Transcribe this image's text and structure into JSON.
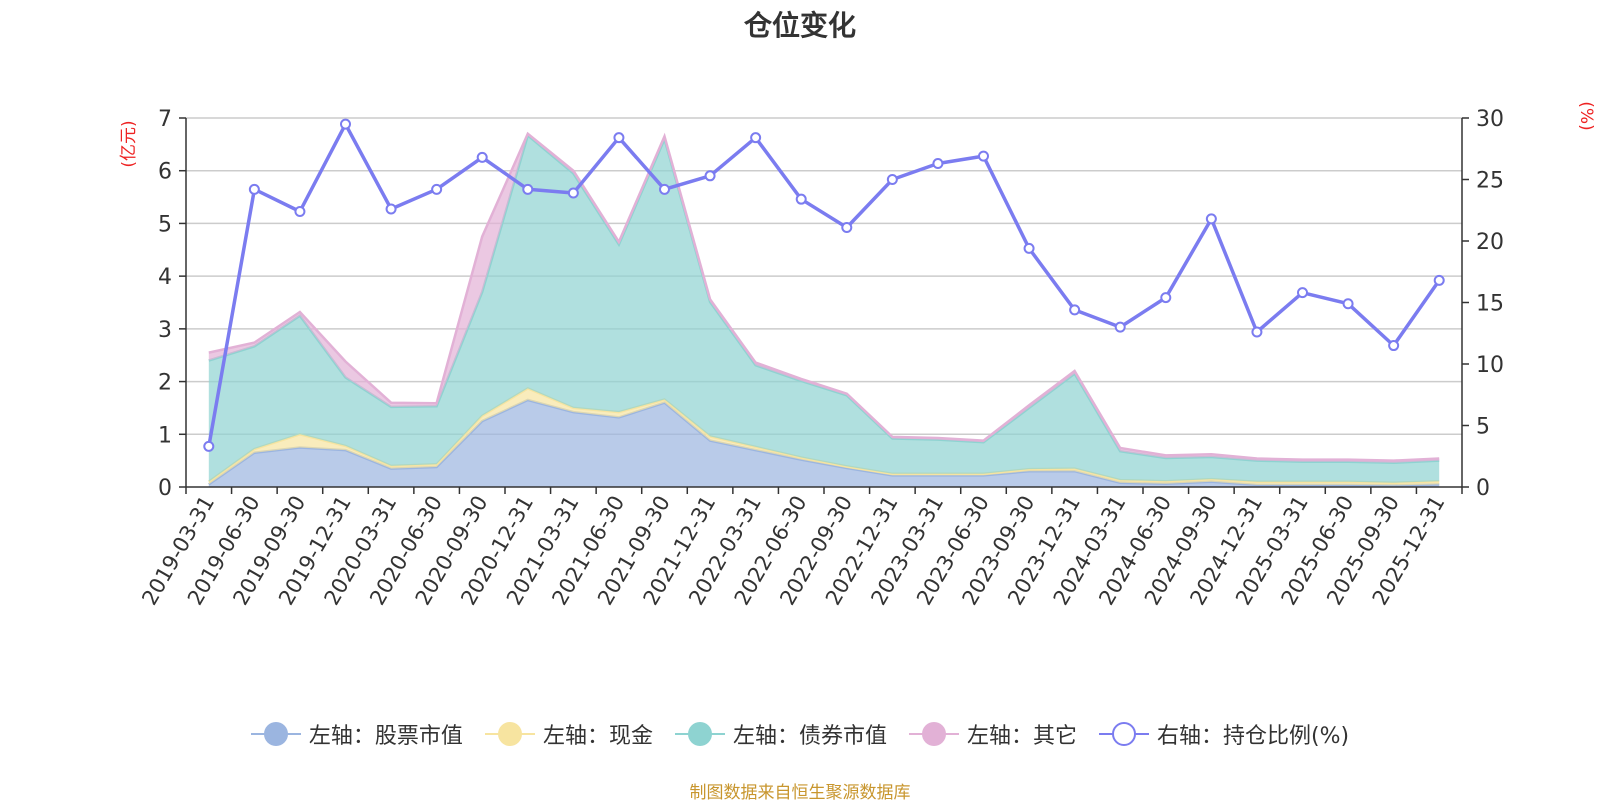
{
  "chart_data": {
    "type": "area",
    "title": "仓位变化",
    "left_axis": {
      "unit_label": "(亿元)",
      "ticks": [
        "0",
        "1",
        "2",
        "3",
        "4",
        "5",
        "6",
        "7"
      ],
      "range": [
        0,
        7
      ]
    },
    "right_axis": {
      "unit_label": "(%)",
      "ticks": [
        "0",
        "5",
        "10",
        "15",
        "20",
        "25",
        "30"
      ],
      "range": [
        0,
        30
      ]
    },
    "categories": [
      "2019-03-31",
      "2019-06-30",
      "2019-09-30",
      "2019-12-31",
      "2020-03-31",
      "2020-06-30",
      "2020-09-30",
      "2020-12-31",
      "2021-03-31",
      "2021-06-30",
      "2021-09-30",
      "2021-12-31",
      "2022-03-31",
      "2022-06-30",
      "2022-09-30",
      "2022-12-31",
      "2023-03-31",
      "2023-06-30",
      "2023-09-30",
      "2023-12-31",
      "2024-03-31",
      "2024-06-30",
      "2024-09-30",
      "2024-12-31",
      "2025-03-31",
      "2025-06-30",
      "2025-09-30",
      "2025-12-31"
    ],
    "stacked_series": [
      {
        "name": "左轴：股票市值",
        "color": "#9bb5e0",
        "values": [
          0.05,
          0.65,
          0.75,
          0.7,
          0.35,
          0.38,
          1.25,
          1.65,
          1.42,
          1.32,
          1.6,
          0.88,
          0.7,
          0.52,
          0.36,
          0.22,
          0.22,
          0.22,
          0.3,
          0.3,
          0.08,
          0.06,
          0.1,
          0.04,
          0.04,
          0.04,
          0.03,
          0.05
        ]
      },
      {
        "name": "左轴：现金",
        "color": "#f7e4a0",
        "values": [
          0.05,
          0.07,
          0.25,
          0.08,
          0.05,
          0.05,
          0.1,
          0.22,
          0.08,
          0.1,
          0.06,
          0.08,
          0.06,
          0.04,
          0.03,
          0.03,
          0.03,
          0.03,
          0.04,
          0.05,
          0.05,
          0.05,
          0.05,
          0.06,
          0.06,
          0.06,
          0.05,
          0.06
        ]
      },
      {
        "name": "左轴：债券市值",
        "color": "#8ed3d1",
        "values": [
          2.3,
          1.95,
          2.25,
          1.3,
          1.12,
          1.1,
          2.35,
          4.8,
          4.45,
          3.18,
          4.94,
          2.55,
          1.55,
          1.45,
          1.35,
          0.67,
          0.65,
          0.6,
          1.16,
          1.8,
          0.55,
          0.44,
          0.42,
          0.4,
          0.38,
          0.38,
          0.38,
          0.39
        ]
      },
      {
        "name": "左轴：其它",
        "color": "#e2b1d6",
        "values": [
          0.15,
          0.07,
          0.07,
          0.3,
          0.08,
          0.06,
          1.05,
          0.03,
          0.05,
          0.05,
          0.05,
          0.05,
          0.05,
          0.04,
          0.03,
          0.03,
          0.03,
          0.03,
          0.05,
          0.05,
          0.06,
          0.05,
          0.05,
          0.04,
          0.04,
          0.04,
          0.04,
          0.04
        ]
      }
    ],
    "line_series": {
      "name": "右轴：持仓比例(%)",
      "color": "#7b7cf0",
      "values": [
        3.3,
        24.2,
        22.4,
        29.5,
        22.6,
        24.2,
        26.8,
        24.2,
        23.9,
        28.4,
        24.2,
        25.3,
        28.4,
        23.4,
        21.1,
        25.0,
        26.3,
        26.9,
        19.4,
        14.4,
        13.0,
        15.4,
        21.8,
        12.6,
        15.8,
        14.9,
        11.5,
        16.8
      ]
    },
    "source_note": "制图数据来自恒生聚源数据库"
  }
}
